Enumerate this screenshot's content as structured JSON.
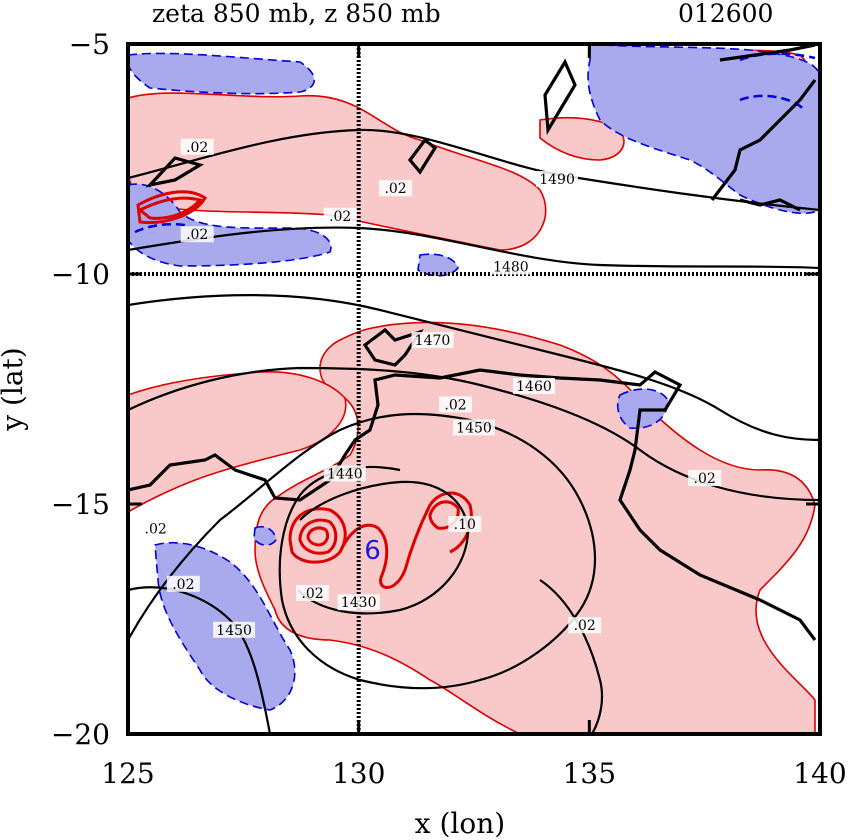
{
  "chart_data": {
    "type": "contour",
    "title_left": "zeta 850 mb, z 850 mb",
    "title_right": "012600",
    "xlabel": "x (lon)",
    "ylabel": "y (lat)",
    "xlim": [
      125,
      140
    ],
    "ylim": [
      -20,
      -5
    ],
    "xticks": [
      125,
      130,
      135,
      140
    ],
    "yticks": [
      -5,
      -10,
      -15,
      -20
    ],
    "xtick_labels": [
      "125",
      "130",
      "135",
      "140"
    ],
    "ytick_labels": [
      "−5",
      "−10",
      "−15",
      "−20"
    ],
    "grid_lines": {
      "x": [
        130
      ],
      "y": [
        -10
      ]
    },
    "fill_colors": {
      "positive_vorticity": "#f9c8c8",
      "negative_vorticity": "#a9a9ee"
    },
    "line_colors": {
      "height": "#000000",
      "positive_vorticity": "#dd0000",
      "negative_vorticity": "#0000dd"
    },
    "height_contour_labels": [
      {
        "text": "1490",
        "x": 134.3,
        "y": -8.0
      },
      {
        "text": "1480",
        "x": 133.3,
        "y": -9.9
      },
      {
        "text": "1470",
        "x": 131.6,
        "y": -11.5
      },
      {
        "text": "1460",
        "x": 133.8,
        "y": -12.5
      },
      {
        "text": "1450",
        "x": 132.5,
        "y": -13.4
      },
      {
        "text": "1440",
        "x": 129.7,
        "y": -14.4
      },
      {
        "text": "1430",
        "x": 130.0,
        "y": -17.2
      },
      {
        "text": "1450",
        "x": 127.3,
        "y": -17.8
      }
    ],
    "vorticity_contour_labels": [
      {
        "text": ".02",
        "x": 126.5,
        "y": -7.3
      },
      {
        "text": ".02",
        "x": 130.8,
        "y": -8.2
      },
      {
        "text": ".02",
        "x": 129.6,
        "y": -8.8
      },
      {
        "text": ".02",
        "x": 126.5,
        "y": -9.2
      },
      {
        "text": ".02",
        "x": 132.1,
        "y": -12.9
      },
      {
        "text": ".02",
        "x": 137.5,
        "y": -14.5
      },
      {
        "text": ".02",
        "x": 125.6,
        "y": -15.6
      },
      {
        "text": ".02",
        "x": 126.2,
        "y": -16.8
      },
      {
        "text": ".02",
        "x": 129.0,
        "y": -17.0
      },
      {
        "text": ".02",
        "x": 134.9,
        "y": -17.7
      },
      {
        "text": ".10",
        "x": 132.3,
        "y": -15.5
      }
    ],
    "storm_marker": {
      "symbol": "6",
      "x": 130.3,
      "y": -16.0
    }
  }
}
